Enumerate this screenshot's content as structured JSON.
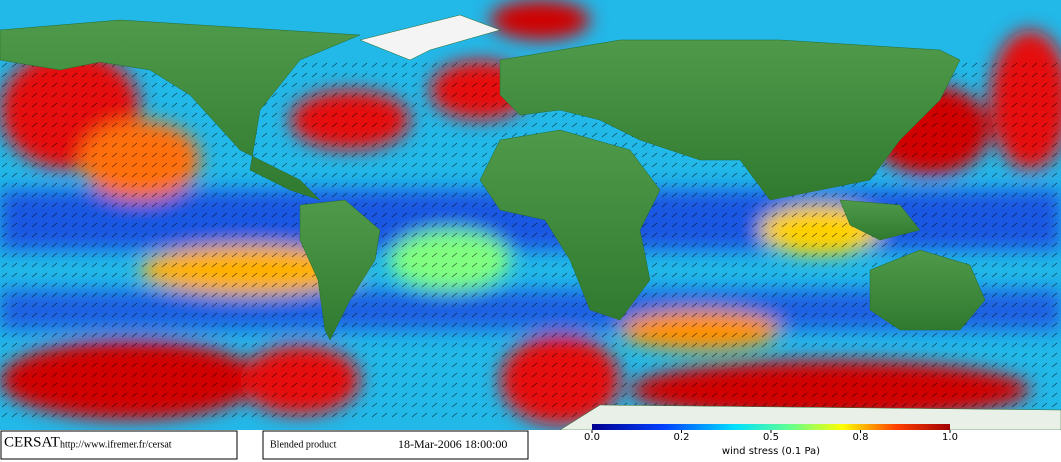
{
  "footer": {
    "logo": "CERSAT",
    "url": "http://www.ifremer.fr/cersat",
    "product": "Blended product",
    "datetime": "18-Mar-2006 18:00:00"
  },
  "colorbar": {
    "label": "wind stress (0.1 Pa)",
    "range": [
      0,
      1
    ],
    "ticks": [
      {
        "value": 0,
        "label": "0.0"
      },
      0.2,
      0.5,
      0.8,
      {
        "value": 1,
        "label": "1.0"
      }
    ]
  }
}
